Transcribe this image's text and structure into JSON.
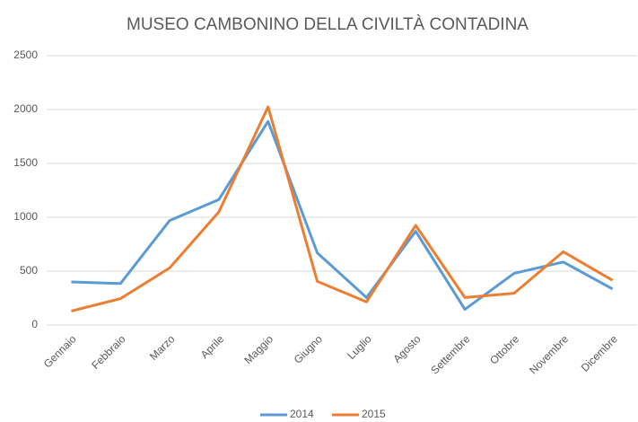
{
  "chart_data": {
    "type": "line",
    "title": "MUSEO CAMBONINO DELLA CIVILTÀ CONTADINA",
    "categories": [
      "Gennaio",
      "Febbraio",
      "Marzo",
      "Aprile",
      "Maggio",
      "Giugno",
      "Luglio",
      "Agosto",
      "Settembre",
      "Ottobre",
      "Novembre",
      "Dicembre"
    ],
    "series": [
      {
        "name": "2014",
        "color": "#5b9bd5",
        "values": [
          400,
          385,
          970,
          1165,
          1890,
          670,
          255,
          870,
          145,
          480,
          585,
          335
        ]
      },
      {
        "name": "2015",
        "color": "#ed7d31",
        "values": [
          130,
          245,
          530,
          1050,
          2025,
          405,
          215,
          925,
          255,
          295,
          680,
          415
        ]
      }
    ],
    "ylim": [
      0,
      2500
    ],
    "yticks": [
      0,
      500,
      1000,
      1500,
      2000,
      2500
    ],
    "grid": true,
    "legend": "bottom"
  }
}
